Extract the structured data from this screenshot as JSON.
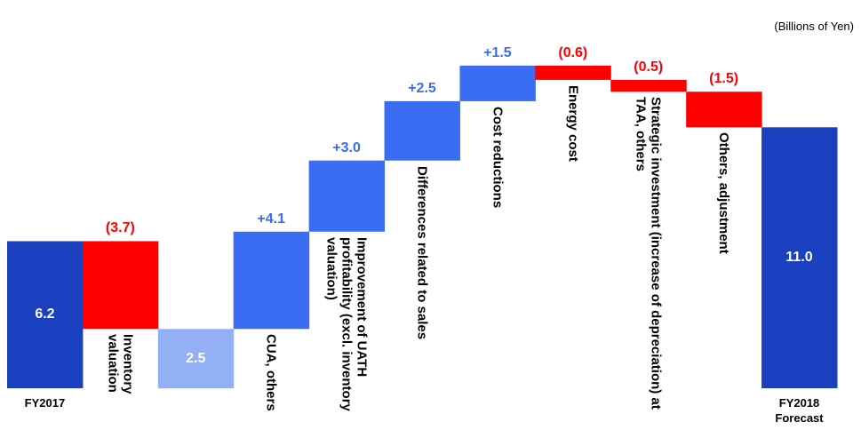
{
  "chart_data": {
    "type": "waterfall",
    "unit_label": "(Billions of Yen)",
    "categories": [
      "FY2017",
      "Inventory valuation",
      null,
      "CUA, others",
      "Improvement of UATH profitability (excl. inventory valuation)",
      "Differences related to sales",
      "Cost reductions",
      "Energy cost",
      "Strategic investment (increase of depreciation) at TAA, others",
      "Others, adjustment",
      "FY2018 Forecast"
    ],
    "values": [
      6.2,
      -3.7,
      2.5,
      4.1,
      3.0,
      2.5,
      1.5,
      -0.6,
      -0.5,
      -1.5,
      11.0
    ],
    "value_labels": [
      "6.2",
      "(3.7)",
      "2.5",
      "+4.1",
      "+3.0",
      "+2.5",
      "+1.5",
      "(0.6)",
      "(0.5)",
      "(1.5)",
      "11.0"
    ],
    "measures": [
      "absolute",
      "relative",
      "absolute",
      "relative",
      "relative",
      "relative",
      "relative",
      "relative",
      "relative",
      "relative",
      "absolute"
    ],
    "colors": [
      "#1a3fbf",
      "#ff0000",
      "#93aff5",
      "#3b6cf4",
      "#3b6cf4",
      "#3b6cf4",
      "#3b6cf4",
      "#ff0000",
      "#ff0000",
      "#ff0000",
      "#1a3fbf"
    ]
  }
}
